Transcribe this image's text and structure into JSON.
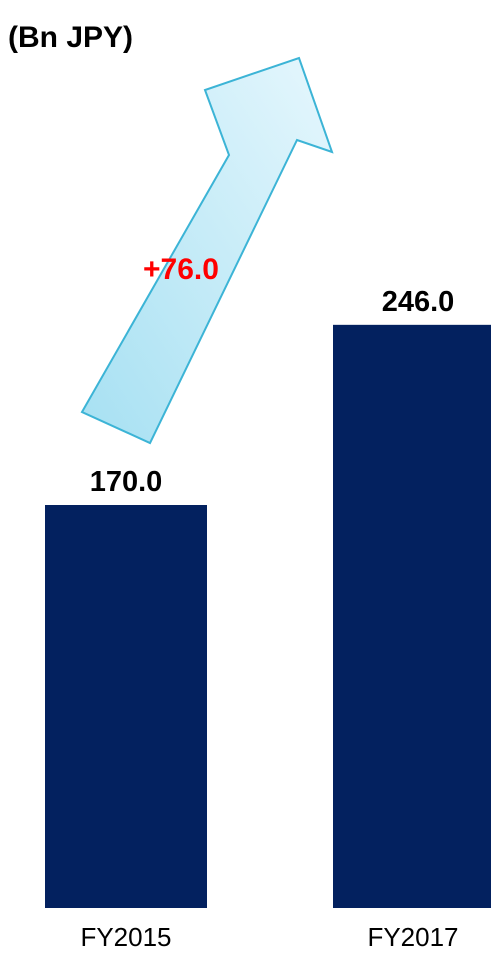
{
  "chart_data": {
    "type": "bar",
    "unit_label": "(Bn JPY)",
    "categories": [
      "FY2015",
      "FY2017"
    ],
    "values": [
      170.0,
      246.0
    ],
    "value_labels": [
      "170.0",
      "246.0"
    ],
    "change_label": "+76.0",
    "colors": {
      "bar": "#03215F",
      "arrow_fill": "#BDEBF8",
      "arrow_stroke": "#3CB4D6",
      "change_text": "#FF0000"
    }
  }
}
